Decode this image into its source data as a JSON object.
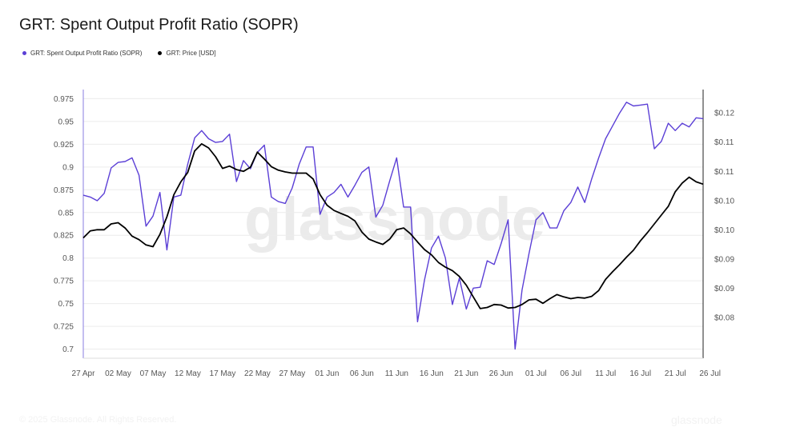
{
  "chart_title": "GRT: Spent Output Profit Ratio (SOPR)",
  "legend": [
    {
      "label": "GRT: Spent Output Profit Ratio (SOPR)",
      "color": "#5b3fd6"
    },
    {
      "label": "GRT: Price [USD]",
      "color": "#000000"
    }
  ],
  "watermark": "glassnode",
  "footer": {
    "copyright": "© 2025 Glassnode. All Rights Reserved.",
    "logo": "glassnode"
  },
  "chart_data": {
    "type": "line",
    "x_tick_labels": [
      "27 Apr",
      "02 May",
      "07 May",
      "12 May",
      "17 May",
      "22 May",
      "27 May",
      "01 Jun",
      "06 Jun",
      "11 Jun",
      "16 Jun",
      "21 Jun",
      "26 Jun",
      "01 Jul",
      "06 Jul",
      "11 Jul",
      "16 Jul",
      "21 Jul",
      "26 Jul"
    ],
    "x_start": "2025-04-27",
    "left_axis": {
      "ticks": [
        "0.975",
        "0.95",
        "0.925",
        "0.9",
        "0.875",
        "0.85",
        "0.825",
        "0.8",
        "0.775",
        "0.75",
        "0.725",
        "0.7"
      ],
      "ylim": [
        0.69,
        0.985
      ]
    },
    "right_axis": {
      "ticks": [
        "$0.12",
        "$0.11",
        "$0.11",
        "$0.10",
        "$0.10",
        "$0.09",
        "$0.09",
        "$0.08"
      ],
      "ylim": [
        0.0795,
        0.1255
      ]
    },
    "series": [
      {
        "name": "GRT: Spent Output Profit Ratio (SOPR)",
        "axis": "left",
        "color": "#5b3fd6",
        "values": [
          0.869,
          0.867,
          0.863,
          0.871,
          0.899,
          0.905,
          0.906,
          0.91,
          0.891,
          0.835,
          0.846,
          0.872,
          0.809,
          0.867,
          0.869,
          0.903,
          0.932,
          0.94,
          0.931,
          0.927,
          0.928,
          0.936,
          0.884,
          0.907,
          0.898,
          0.916,
          0.924,
          0.867,
          0.862,
          0.86,
          0.877,
          0.903,
          0.922,
          0.922,
          0.848,
          0.867,
          0.872,
          0.881,
          0.867,
          0.88,
          0.894,
          0.9,
          0.845,
          0.858,
          0.885,
          0.91,
          0.856,
          0.856,
          0.73,
          0.776,
          0.811,
          0.824,
          0.8,
          0.749,
          0.778,
          0.744,
          0.767,
          0.768,
          0.797,
          0.793,
          0.816,
          0.842,
          0.7,
          0.765,
          0.805,
          0.842,
          0.85,
          0.833,
          0.833,
          0.852,
          0.861,
          0.878,
          0.861,
          0.887,
          0.91,
          0.931,
          0.945,
          0.959,
          0.971,
          0.967,
          0.968,
          0.969,
          0.92,
          0.928,
          0.948,
          0.94,
          0.948,
          0.944,
          0.954,
          0.953
        ]
      },
      {
        "name": "GRT: Price [USD]",
        "axis": "right",
        "color": "#000000",
        "values": [
          0.1001,
          0.1013,
          0.1015,
          0.1015,
          0.1025,
          0.1027,
          0.1018,
          0.1004,
          0.0998,
          0.0989,
          0.0986,
          0.1007,
          0.1037,
          0.1075,
          0.1097,
          0.1113,
          0.115,
          0.1162,
          0.1155,
          0.114,
          0.112,
          0.1124,
          0.1118,
          0.1115,
          0.1122,
          0.1148,
          0.1136,
          0.1123,
          0.1117,
          0.1114,
          0.1112,
          0.1112,
          0.1112,
          0.1102,
          0.1075,
          0.1057,
          0.1048,
          0.1043,
          0.1038,
          0.103,
          0.1011,
          0.0999,
          0.0994,
          0.099,
          0.0999,
          0.1015,
          0.1018,
          0.1008,
          0.0994,
          0.0981,
          0.0972,
          0.0959,
          0.0951,
          0.0945,
          0.0935,
          0.092,
          0.09,
          0.088,
          0.0882,
          0.0887,
          0.0886,
          0.0881,
          0.0882,
          0.0887,
          0.0895,
          0.0896,
          0.0889,
          0.0897,
          0.0904,
          0.09,
          0.0897,
          0.0899,
          0.0898,
          0.0901,
          0.0911,
          0.093,
          0.0943,
          0.0955,
          0.0968,
          0.098,
          0.0996,
          0.101,
          0.1025,
          0.104,
          0.1055,
          0.108,
          0.1095,
          0.1105,
          0.1097,
          0.1093
        ]
      }
    ]
  }
}
